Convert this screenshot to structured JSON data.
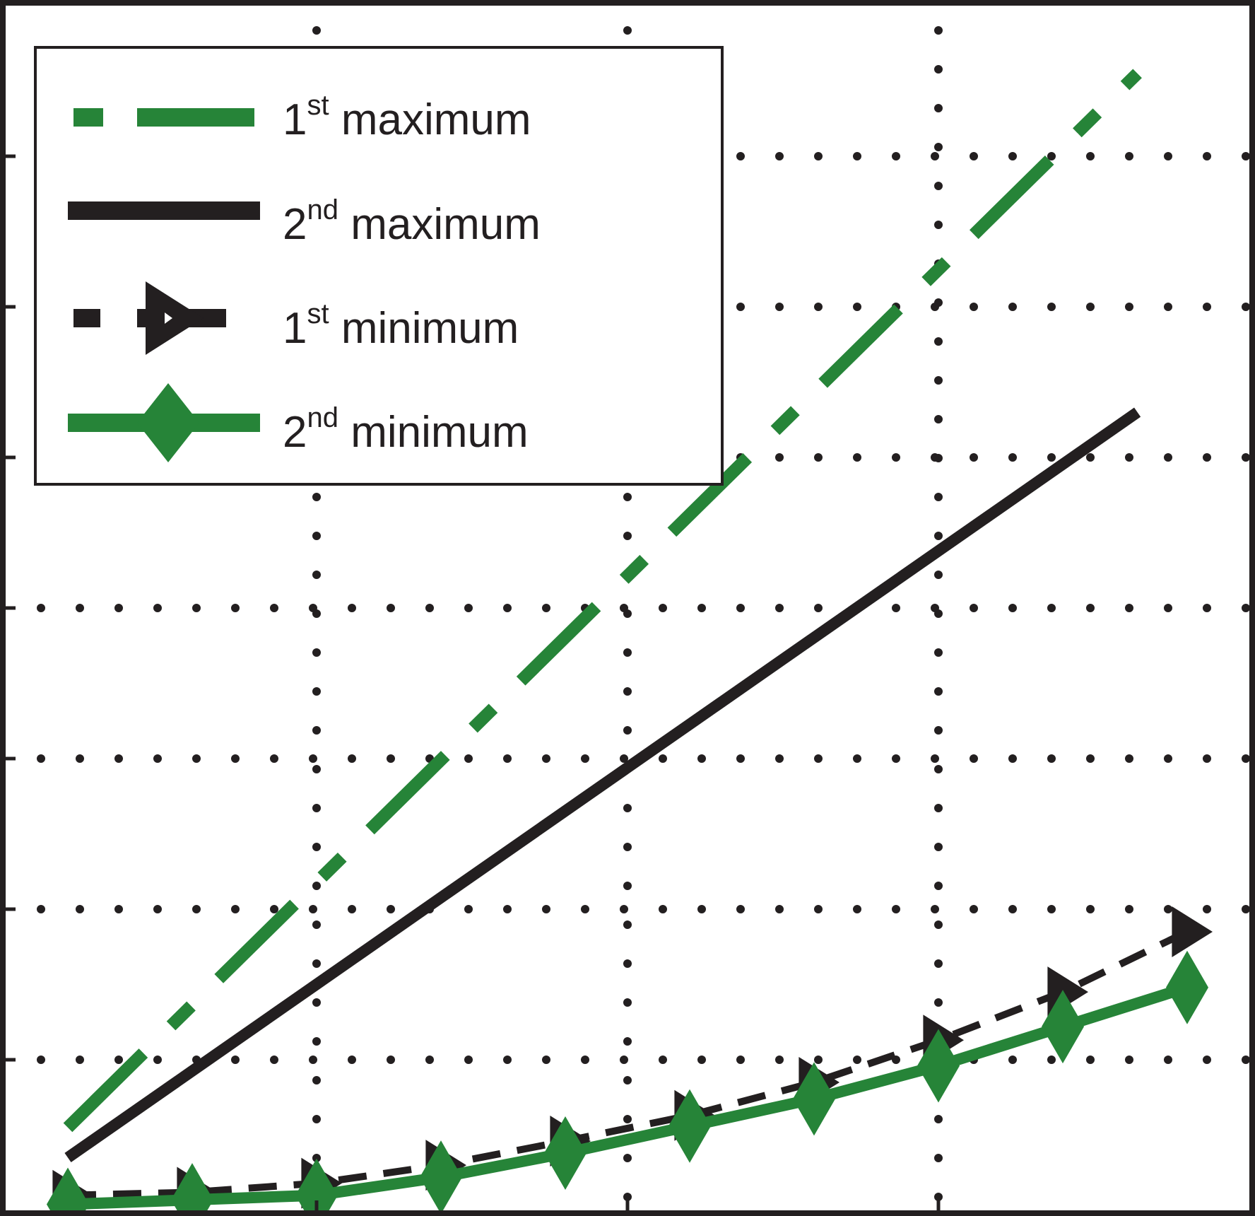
{
  "colors": {
    "green": "#268438",
    "black": "#231f20",
    "background": "#ffffff"
  },
  "legend": {
    "position": "top-left",
    "entries": [
      {
        "num": "1",
        "sup": "st",
        "text": " maximum",
        "series": "1st maximum"
      },
      {
        "num": "2",
        "sup": "nd",
        "text": " maximum",
        "series": "2nd maximum"
      },
      {
        "num": "1",
        "sup": "st",
        "text": " minimum",
        "series": "1st minimum"
      },
      {
        "num": "2",
        "sup": "nd",
        "text": " minimum",
        "series": "2nd minimum"
      }
    ]
  },
  "chart_data": {
    "type": "line",
    "title": "",
    "xlabel": "",
    "ylabel": "",
    "grid": true,
    "grid_style": "dotted",
    "tick_labels_visible": false,
    "xlim": [
      0,
      10
    ],
    "ylim": [
      0,
      8
    ],
    "x_gridlines": [
      2.5,
      5,
      7.5
    ],
    "y_gridlines": [
      1,
      2,
      3,
      4,
      5,
      6,
      7
    ],
    "series": [
      {
        "name": "1st maximum",
        "color": "#268438",
        "style": "dash-dot",
        "marker": "none",
        "x": [
          0.5,
          9.1
        ],
        "y": [
          0.55,
          7.55
        ]
      },
      {
        "name": "2nd maximum",
        "color": "#231f20",
        "style": "solid",
        "marker": "none",
        "x": [
          0.5,
          9.1
        ],
        "y": [
          0.35,
          5.3
        ]
      },
      {
        "name": "1st minimum",
        "color": "#231f20",
        "style": "dashed",
        "marker": "triangle-right",
        "x": [
          0.5,
          1.5,
          2.5,
          3.5,
          4.5,
          5.5,
          6.5,
          7.5,
          8.5,
          9.5
        ],
        "y": [
          0.1,
          0.12,
          0.18,
          0.3,
          0.46,
          0.63,
          0.85,
          1.13,
          1.45,
          1.85
        ]
      },
      {
        "name": "2nd minimum",
        "color": "#268438",
        "style": "solid",
        "marker": "diamond",
        "x": [
          0.5,
          1.5,
          2.5,
          3.5,
          4.5,
          5.5,
          6.5,
          7.5,
          8.5,
          9.5
        ],
        "y": [
          0.04,
          0.07,
          0.1,
          0.22,
          0.38,
          0.56,
          0.74,
          0.96,
          1.22,
          1.48
        ]
      }
    ]
  }
}
